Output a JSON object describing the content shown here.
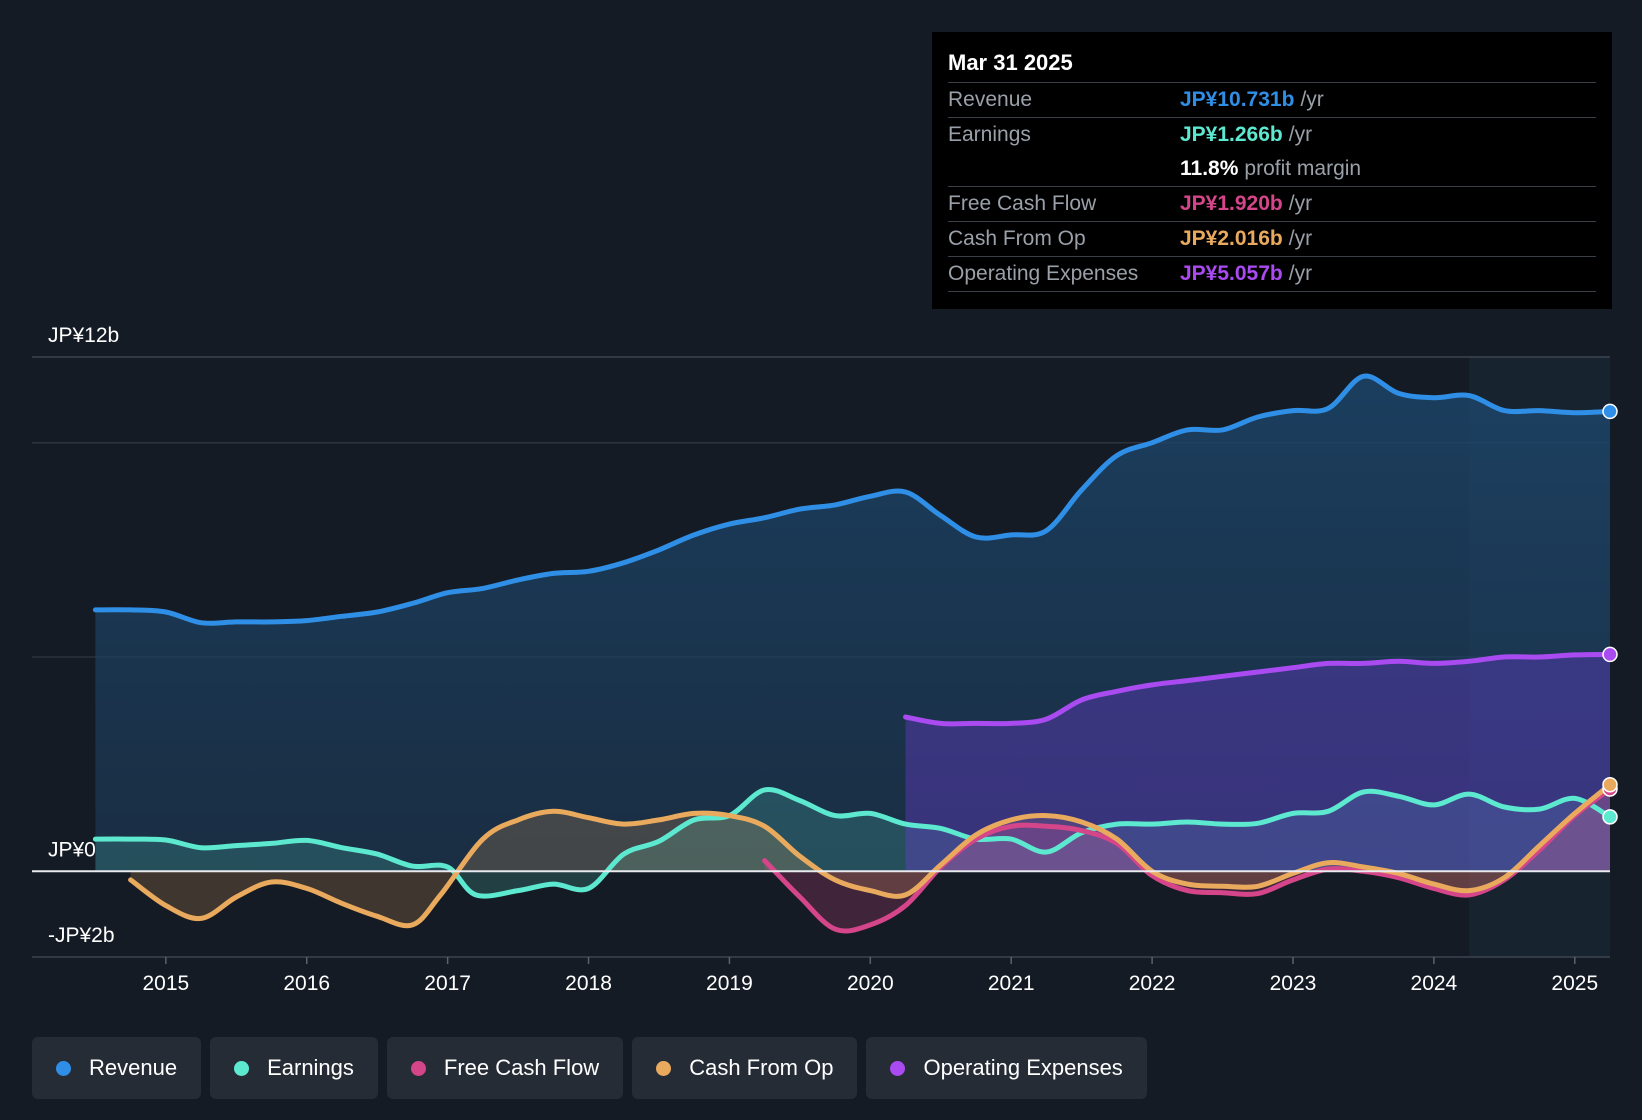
{
  "tooltip": {
    "date": "Mar 31 2025",
    "rows": [
      {
        "label": "Revenue",
        "value": "JP¥10.731b",
        "unit": "/yr",
        "color": "#2f8fe6"
      },
      {
        "label": "Earnings",
        "value": "JP¥1.266b",
        "unit": "/yr",
        "color": "#5de8d0"
      },
      {
        "label": "",
        "value": "11.8%",
        "unit": "profit margin",
        "color": "#ffffff"
      },
      {
        "label": "Free Cash Flow",
        "value": "JP¥1.920b",
        "unit": "/yr",
        "color": "#d4458a"
      },
      {
        "label": "Cash From Op",
        "value": "JP¥2.016b",
        "unit": "/yr",
        "color": "#eaaa5e"
      },
      {
        "label": "Operating Expenses",
        "value": "JP¥5.057b",
        "unit": "/yr",
        "color": "#a94bf0"
      }
    ]
  },
  "legend": [
    {
      "label": "Revenue",
      "color": "#2f8fe6"
    },
    {
      "label": "Earnings",
      "color": "#5de8d0"
    },
    {
      "label": "Free Cash Flow",
      "color": "#d4458a"
    },
    {
      "label": "Cash From Op",
      "color": "#eaaa5e"
    },
    {
      "label": "Operating Expenses",
      "color": "#a94bf0"
    }
  ],
  "chart_data": {
    "type": "area",
    "title": "",
    "y_tick_labels": [
      "JP¥12b",
      "JP¥0",
      "-JP¥2b"
    ],
    "y_tick_values": [
      12,
      0,
      -2
    ],
    "ylim": [
      -2,
      12
    ],
    "xlim": [
      2014.05,
      2025.25
    ],
    "x_ticks": [
      2015,
      2016,
      2017,
      2018,
      2019,
      2020,
      2021,
      2022,
      2023,
      2024,
      2025
    ],
    "x_tick_labels": [
      "2015",
      "2016",
      "2017",
      "2018",
      "2019",
      "2020",
      "2021",
      "2022",
      "2023",
      "2024",
      "2025"
    ],
    "forecast_start": 2024.25,
    "series": [
      {
        "name": "Revenue",
        "color": "#2f8fe6",
        "points": [
          [
            2014.5,
            6.1
          ],
          [
            2014.75,
            6.1
          ],
          [
            2015.0,
            6.05
          ],
          [
            2015.25,
            5.8
          ],
          [
            2015.5,
            5.82
          ],
          [
            2015.75,
            5.82
          ],
          [
            2016.0,
            5.85
          ],
          [
            2016.25,
            5.95
          ],
          [
            2016.5,
            6.05
          ],
          [
            2016.75,
            6.25
          ],
          [
            2017.0,
            6.5
          ],
          [
            2017.25,
            6.6
          ],
          [
            2017.5,
            6.8
          ],
          [
            2017.75,
            6.95
          ],
          [
            2018.0,
            7.0
          ],
          [
            2018.25,
            7.2
          ],
          [
            2018.5,
            7.5
          ],
          [
            2018.75,
            7.85
          ],
          [
            2019.0,
            8.1
          ],
          [
            2019.25,
            8.25
          ],
          [
            2019.5,
            8.45
          ],
          [
            2019.75,
            8.55
          ],
          [
            2020.0,
            8.75
          ],
          [
            2020.25,
            8.85
          ],
          [
            2020.5,
            8.3
          ],
          [
            2020.75,
            7.8
          ],
          [
            2021.0,
            7.85
          ],
          [
            2021.25,
            7.95
          ],
          [
            2021.5,
            8.9
          ],
          [
            2021.75,
            9.7
          ],
          [
            2022.0,
            10.0
          ],
          [
            2022.25,
            10.3
          ],
          [
            2022.5,
            10.3
          ],
          [
            2022.75,
            10.6
          ],
          [
            2023.0,
            10.75
          ],
          [
            2023.25,
            10.8
          ],
          [
            2023.5,
            11.55
          ],
          [
            2023.75,
            11.15
          ],
          [
            2024.0,
            11.05
          ],
          [
            2024.25,
            11.1
          ],
          [
            2024.5,
            10.75
          ],
          [
            2024.75,
            10.75
          ],
          [
            2025.0,
            10.7
          ],
          [
            2025.25,
            10.73
          ]
        ]
      },
      {
        "name": "Earnings",
        "color": "#5de8d0",
        "points": [
          [
            2014.5,
            0.75
          ],
          [
            2014.75,
            0.75
          ],
          [
            2015.0,
            0.73
          ],
          [
            2015.25,
            0.55
          ],
          [
            2015.5,
            0.6
          ],
          [
            2015.75,
            0.65
          ],
          [
            2016.0,
            0.72
          ],
          [
            2016.25,
            0.55
          ],
          [
            2016.5,
            0.4
          ],
          [
            2016.75,
            0.12
          ],
          [
            2017.0,
            0.1
          ],
          [
            2017.2,
            -0.55
          ],
          [
            2017.5,
            -0.45
          ],
          [
            2017.75,
            -0.3
          ],
          [
            2018.0,
            -0.4
          ],
          [
            2018.25,
            0.4
          ],
          [
            2018.5,
            0.7
          ],
          [
            2018.75,
            1.2
          ],
          [
            2019.0,
            1.3
          ],
          [
            2019.25,
            1.9
          ],
          [
            2019.5,
            1.65
          ],
          [
            2019.75,
            1.3
          ],
          [
            2020.0,
            1.35
          ],
          [
            2020.25,
            1.1
          ],
          [
            2020.5,
            1.0
          ],
          [
            2020.75,
            0.75
          ],
          [
            2021.0,
            0.75
          ],
          [
            2021.25,
            0.45
          ],
          [
            2021.5,
            0.9
          ],
          [
            2021.75,
            1.1
          ],
          [
            2022.0,
            1.1
          ],
          [
            2022.25,
            1.15
          ],
          [
            2022.5,
            1.1
          ],
          [
            2022.75,
            1.12
          ],
          [
            2023.0,
            1.35
          ],
          [
            2023.25,
            1.4
          ],
          [
            2023.5,
            1.85
          ],
          [
            2023.75,
            1.75
          ],
          [
            2024.0,
            1.55
          ],
          [
            2024.25,
            1.8
          ],
          [
            2024.5,
            1.5
          ],
          [
            2024.75,
            1.45
          ],
          [
            2025.0,
            1.7
          ],
          [
            2025.25,
            1.27
          ]
        ]
      },
      {
        "name": "Free Cash Flow",
        "color": "#d4458a",
        "points": [
          [
            2019.25,
            0.25
          ],
          [
            2019.5,
            -0.6
          ],
          [
            2019.75,
            -1.35
          ],
          [
            2020.0,
            -1.25
          ],
          [
            2020.25,
            -0.8
          ],
          [
            2020.5,
            0.1
          ],
          [
            2020.75,
            0.75
          ],
          [
            2021.0,
            1.05
          ],
          [
            2021.25,
            1.05
          ],
          [
            2021.5,
            0.95
          ],
          [
            2021.75,
            0.65
          ],
          [
            2022.0,
            -0.1
          ],
          [
            2022.25,
            -0.45
          ],
          [
            2022.5,
            -0.5
          ],
          [
            2022.75,
            -0.52
          ],
          [
            2023.0,
            -0.2
          ],
          [
            2023.25,
            0.05
          ],
          [
            2023.5,
            0.0
          ],
          [
            2023.75,
            -0.15
          ],
          [
            2024.0,
            -0.4
          ],
          [
            2024.25,
            -0.55
          ],
          [
            2024.5,
            -0.2
          ],
          [
            2024.75,
            0.5
          ],
          [
            2025.0,
            1.3
          ],
          [
            2025.25,
            1.92
          ]
        ]
      },
      {
        "name": "Cash From Op",
        "color": "#eaaa5e",
        "points": [
          [
            2014.75,
            -0.2
          ],
          [
            2015.0,
            -0.8
          ],
          [
            2015.25,
            -1.1
          ],
          [
            2015.5,
            -0.6
          ],
          [
            2015.75,
            -0.25
          ],
          [
            2016.0,
            -0.4
          ],
          [
            2016.25,
            -0.75
          ],
          [
            2016.5,
            -1.05
          ],
          [
            2016.75,
            -1.25
          ],
          [
            2016.95,
            -0.55
          ],
          [
            2017.25,
            0.75
          ],
          [
            2017.5,
            1.2
          ],
          [
            2017.75,
            1.4
          ],
          [
            2018.0,
            1.25
          ],
          [
            2018.25,
            1.1
          ],
          [
            2018.5,
            1.2
          ],
          [
            2018.75,
            1.35
          ],
          [
            2019.0,
            1.3
          ],
          [
            2019.25,
            1.05
          ],
          [
            2019.5,
            0.35
          ],
          [
            2019.75,
            -0.2
          ],
          [
            2020.0,
            -0.45
          ],
          [
            2020.25,
            -0.55
          ],
          [
            2020.5,
            0.15
          ],
          [
            2020.75,
            0.85
          ],
          [
            2021.0,
            1.2
          ],
          [
            2021.25,
            1.3
          ],
          [
            2021.5,
            1.15
          ],
          [
            2021.75,
            0.75
          ],
          [
            2022.0,
            0.0
          ],
          [
            2022.25,
            -0.3
          ],
          [
            2022.5,
            -0.35
          ],
          [
            2022.75,
            -0.35
          ],
          [
            2023.0,
            -0.05
          ],
          [
            2023.25,
            0.2
          ],
          [
            2023.5,
            0.1
          ],
          [
            2023.75,
            -0.05
          ],
          [
            2024.0,
            -0.3
          ],
          [
            2024.25,
            -0.45
          ],
          [
            2024.5,
            -0.15
          ],
          [
            2024.75,
            0.6
          ],
          [
            2025.0,
            1.35
          ],
          [
            2025.25,
            2.02
          ]
        ]
      },
      {
        "name": "Operating Expenses",
        "color": "#a94bf0",
        "points": [
          [
            2020.25,
            3.6
          ],
          [
            2020.5,
            3.45
          ],
          [
            2020.75,
            3.45
          ],
          [
            2021.0,
            3.45
          ],
          [
            2021.25,
            3.55
          ],
          [
            2021.5,
            4.0
          ],
          [
            2021.75,
            4.2
          ],
          [
            2022.0,
            4.35
          ],
          [
            2022.25,
            4.45
          ],
          [
            2022.5,
            4.55
          ],
          [
            2022.75,
            4.65
          ],
          [
            2023.0,
            4.75
          ],
          [
            2023.25,
            4.85
          ],
          [
            2023.5,
            4.85
          ],
          [
            2023.75,
            4.9
          ],
          [
            2024.0,
            4.85
          ],
          [
            2024.25,
            4.9
          ],
          [
            2024.5,
            5.0
          ],
          [
            2024.75,
            5.0
          ],
          [
            2025.0,
            5.05
          ],
          [
            2025.25,
            5.06
          ]
        ]
      }
    ]
  }
}
